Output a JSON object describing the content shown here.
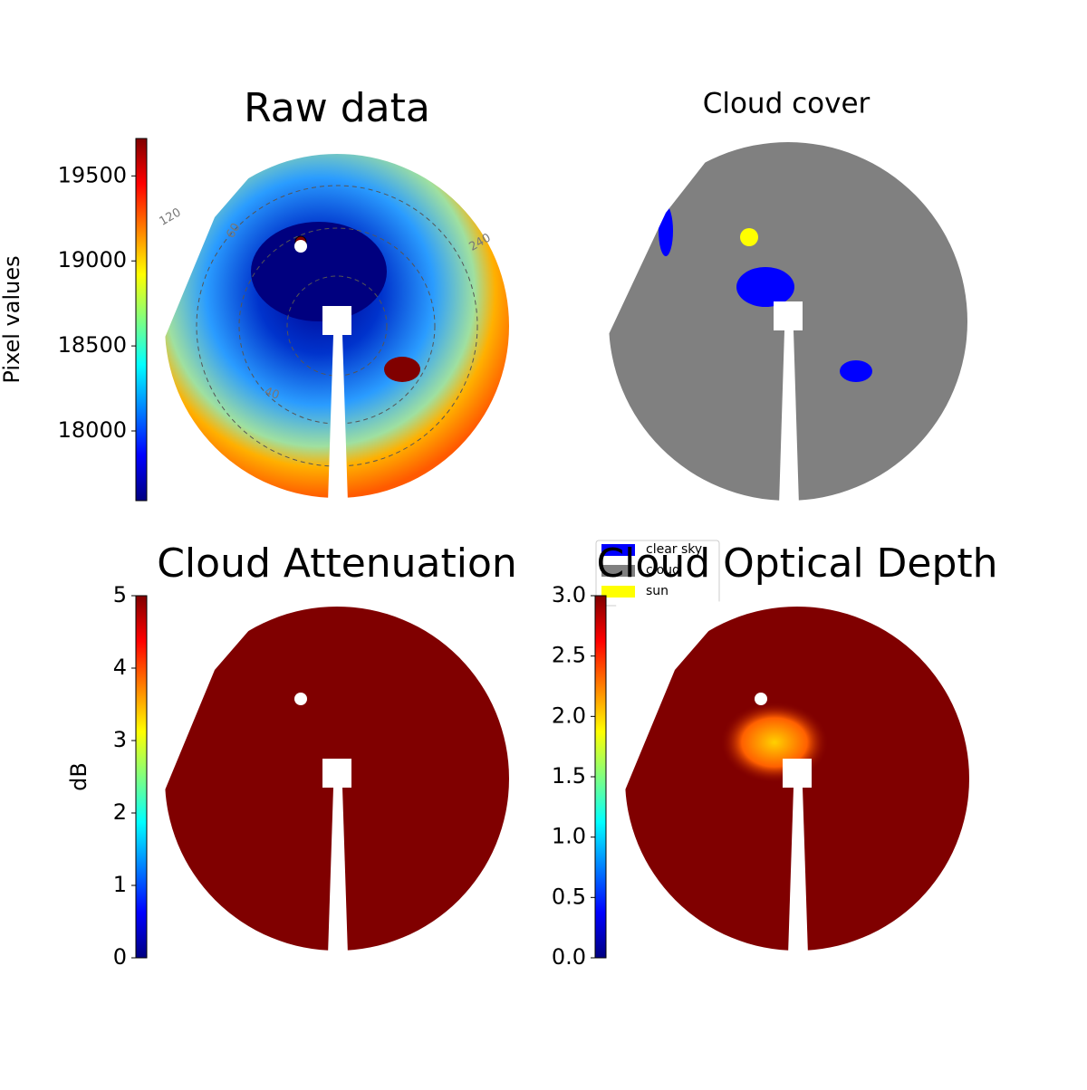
{
  "chart_data": [
    {
      "type": "image",
      "title": "Raw data",
      "colorbar_label": "Pixel values",
      "colormap": "jet",
      "clim": [
        17590,
        19720
      ],
      "cticks": [
        18000,
        18500,
        19000,
        19500
      ],
      "annotations": [
        "120",
        "60",
        "240",
        "40"
      ]
    },
    {
      "type": "image",
      "title": "Cloud cover",
      "legend": [
        {
          "name": "clear sky",
          "color": "#0000ff"
        },
        {
          "name": "cloud",
          "color": "#808080"
        },
        {
          "name": "sun",
          "color": "#ffff00"
        }
      ]
    },
    {
      "type": "image",
      "title": "Cloud Attenuation",
      "colorbar_label": "dB",
      "colormap": "jet",
      "clim": [
        0,
        5
      ],
      "cticks": [
        0,
        1,
        2,
        3,
        4,
        5
      ]
    },
    {
      "type": "image",
      "title": "Cloud Optical Depth",
      "colormap": "jet",
      "clim": [
        0,
        3
      ],
      "cticks": [
        {
          "value": 0,
          "label": "0.0"
        },
        {
          "value": 0.5,
          "label": "0.5"
        },
        {
          "value": 1,
          "label": "1.0"
        },
        {
          "value": 1.5,
          "label": "1.5"
        },
        {
          "value": 2,
          "label": "2.0"
        },
        {
          "value": 2.5,
          "label": "2.5"
        },
        {
          "value": 3,
          "label": "3.0"
        }
      ]
    }
  ]
}
